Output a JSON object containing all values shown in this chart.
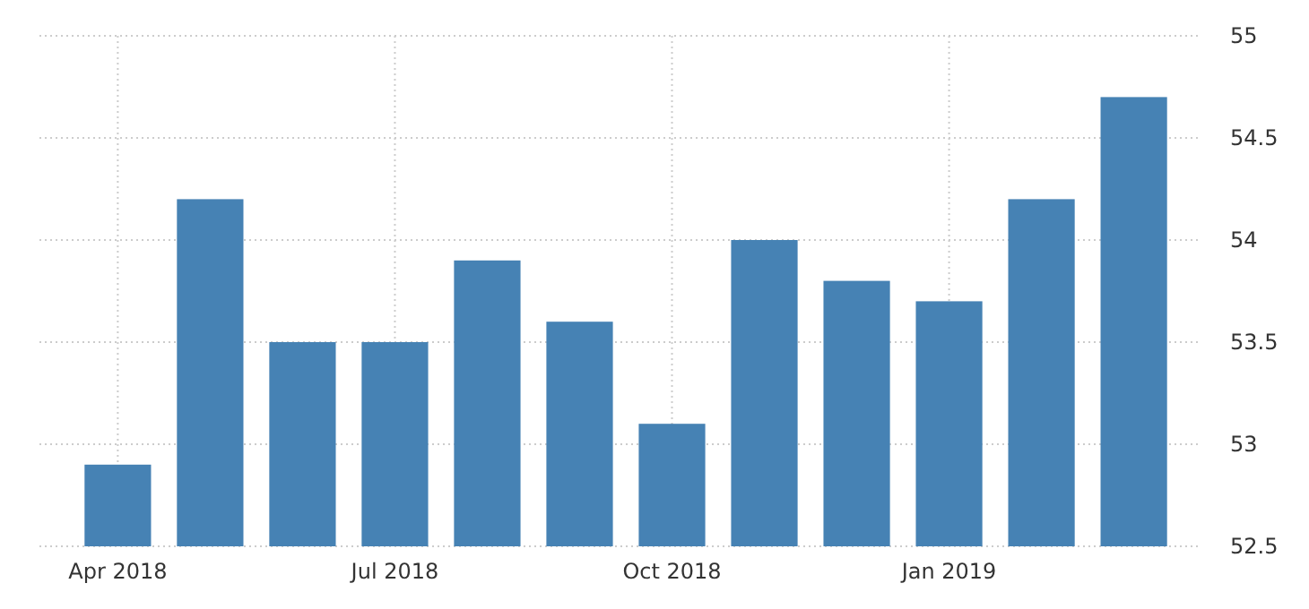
{
  "chart_data": {
    "type": "bar",
    "categories": [
      "Apr 2018",
      null,
      null,
      "Jul 2018",
      null,
      null,
      "Oct 2018",
      null,
      null,
      "Jan 2019",
      null,
      null
    ],
    "values": [
      52.9,
      54.2,
      53.5,
      53.5,
      53.9,
      53.6,
      53.1,
      54.0,
      53.8,
      53.7,
      54.2,
      54.7
    ],
    "color": "#4682b4",
    "ylim": [
      52.5,
      55
    ],
    "yticks": [
      52.5,
      53,
      53.5,
      54,
      54.5,
      55
    ],
    "grid": true
  }
}
